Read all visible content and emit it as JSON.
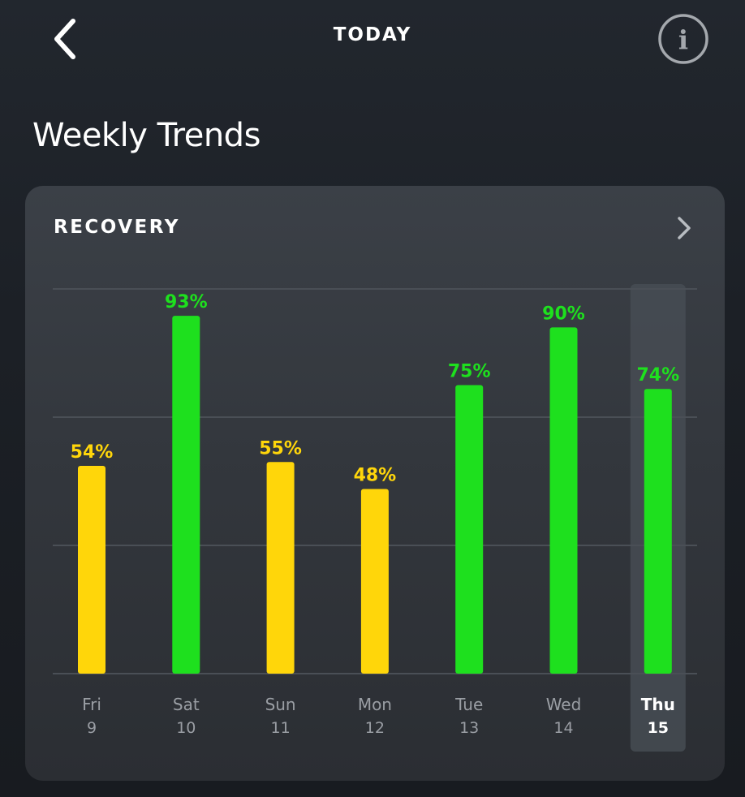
{
  "header": {
    "title": "TODAY",
    "back_icon": "chevron-left-icon",
    "info_icon": "info-icon",
    "info_glyph": "i"
  },
  "section": {
    "title": "Weekly Trends"
  },
  "card": {
    "title": "RECOVERY",
    "chevron_icon": "chevron-right-icon"
  },
  "colors": {
    "green": "#1ee01e",
    "yellow": "#ffd60a",
    "gridline": "#4a4f56",
    "day_label": "#9a9ea4",
    "selected_label": "#ffffff",
    "selected_bg": "#474c53"
  },
  "chart_data": {
    "type": "bar",
    "title": "RECOVERY",
    "categories": [
      "Fri 9",
      "Sat 10",
      "Sun 11",
      "Mon 12",
      "Tue 13",
      "Wed 14",
      "Thu 15"
    ],
    "days": [
      {
        "weekday": "Fri",
        "date": "9",
        "value": 54,
        "label": "54%",
        "color": "yellow"
      },
      {
        "weekday": "Sat",
        "date": "10",
        "value": 93,
        "label": "93%",
        "color": "green"
      },
      {
        "weekday": "Sun",
        "date": "11",
        "value": 55,
        "label": "55%",
        "color": "yellow"
      },
      {
        "weekday": "Mon",
        "date": "12",
        "value": 48,
        "label": "48%",
        "color": "yellow"
      },
      {
        "weekday": "Tue",
        "date": "13",
        "value": 75,
        "label": "75%",
        "color": "green"
      },
      {
        "weekday": "Wed",
        "date": "14",
        "value": 90,
        "label": "90%",
        "color": "green"
      },
      {
        "weekday": "Thu",
        "date": "15",
        "value": 74,
        "label": "74%",
        "color": "green"
      }
    ],
    "values": [
      54,
      93,
      55,
      48,
      75,
      90,
      74
    ],
    "ylim": [
      0,
      100
    ],
    "unit": "%",
    "grid": true,
    "selected_index": 6
  }
}
